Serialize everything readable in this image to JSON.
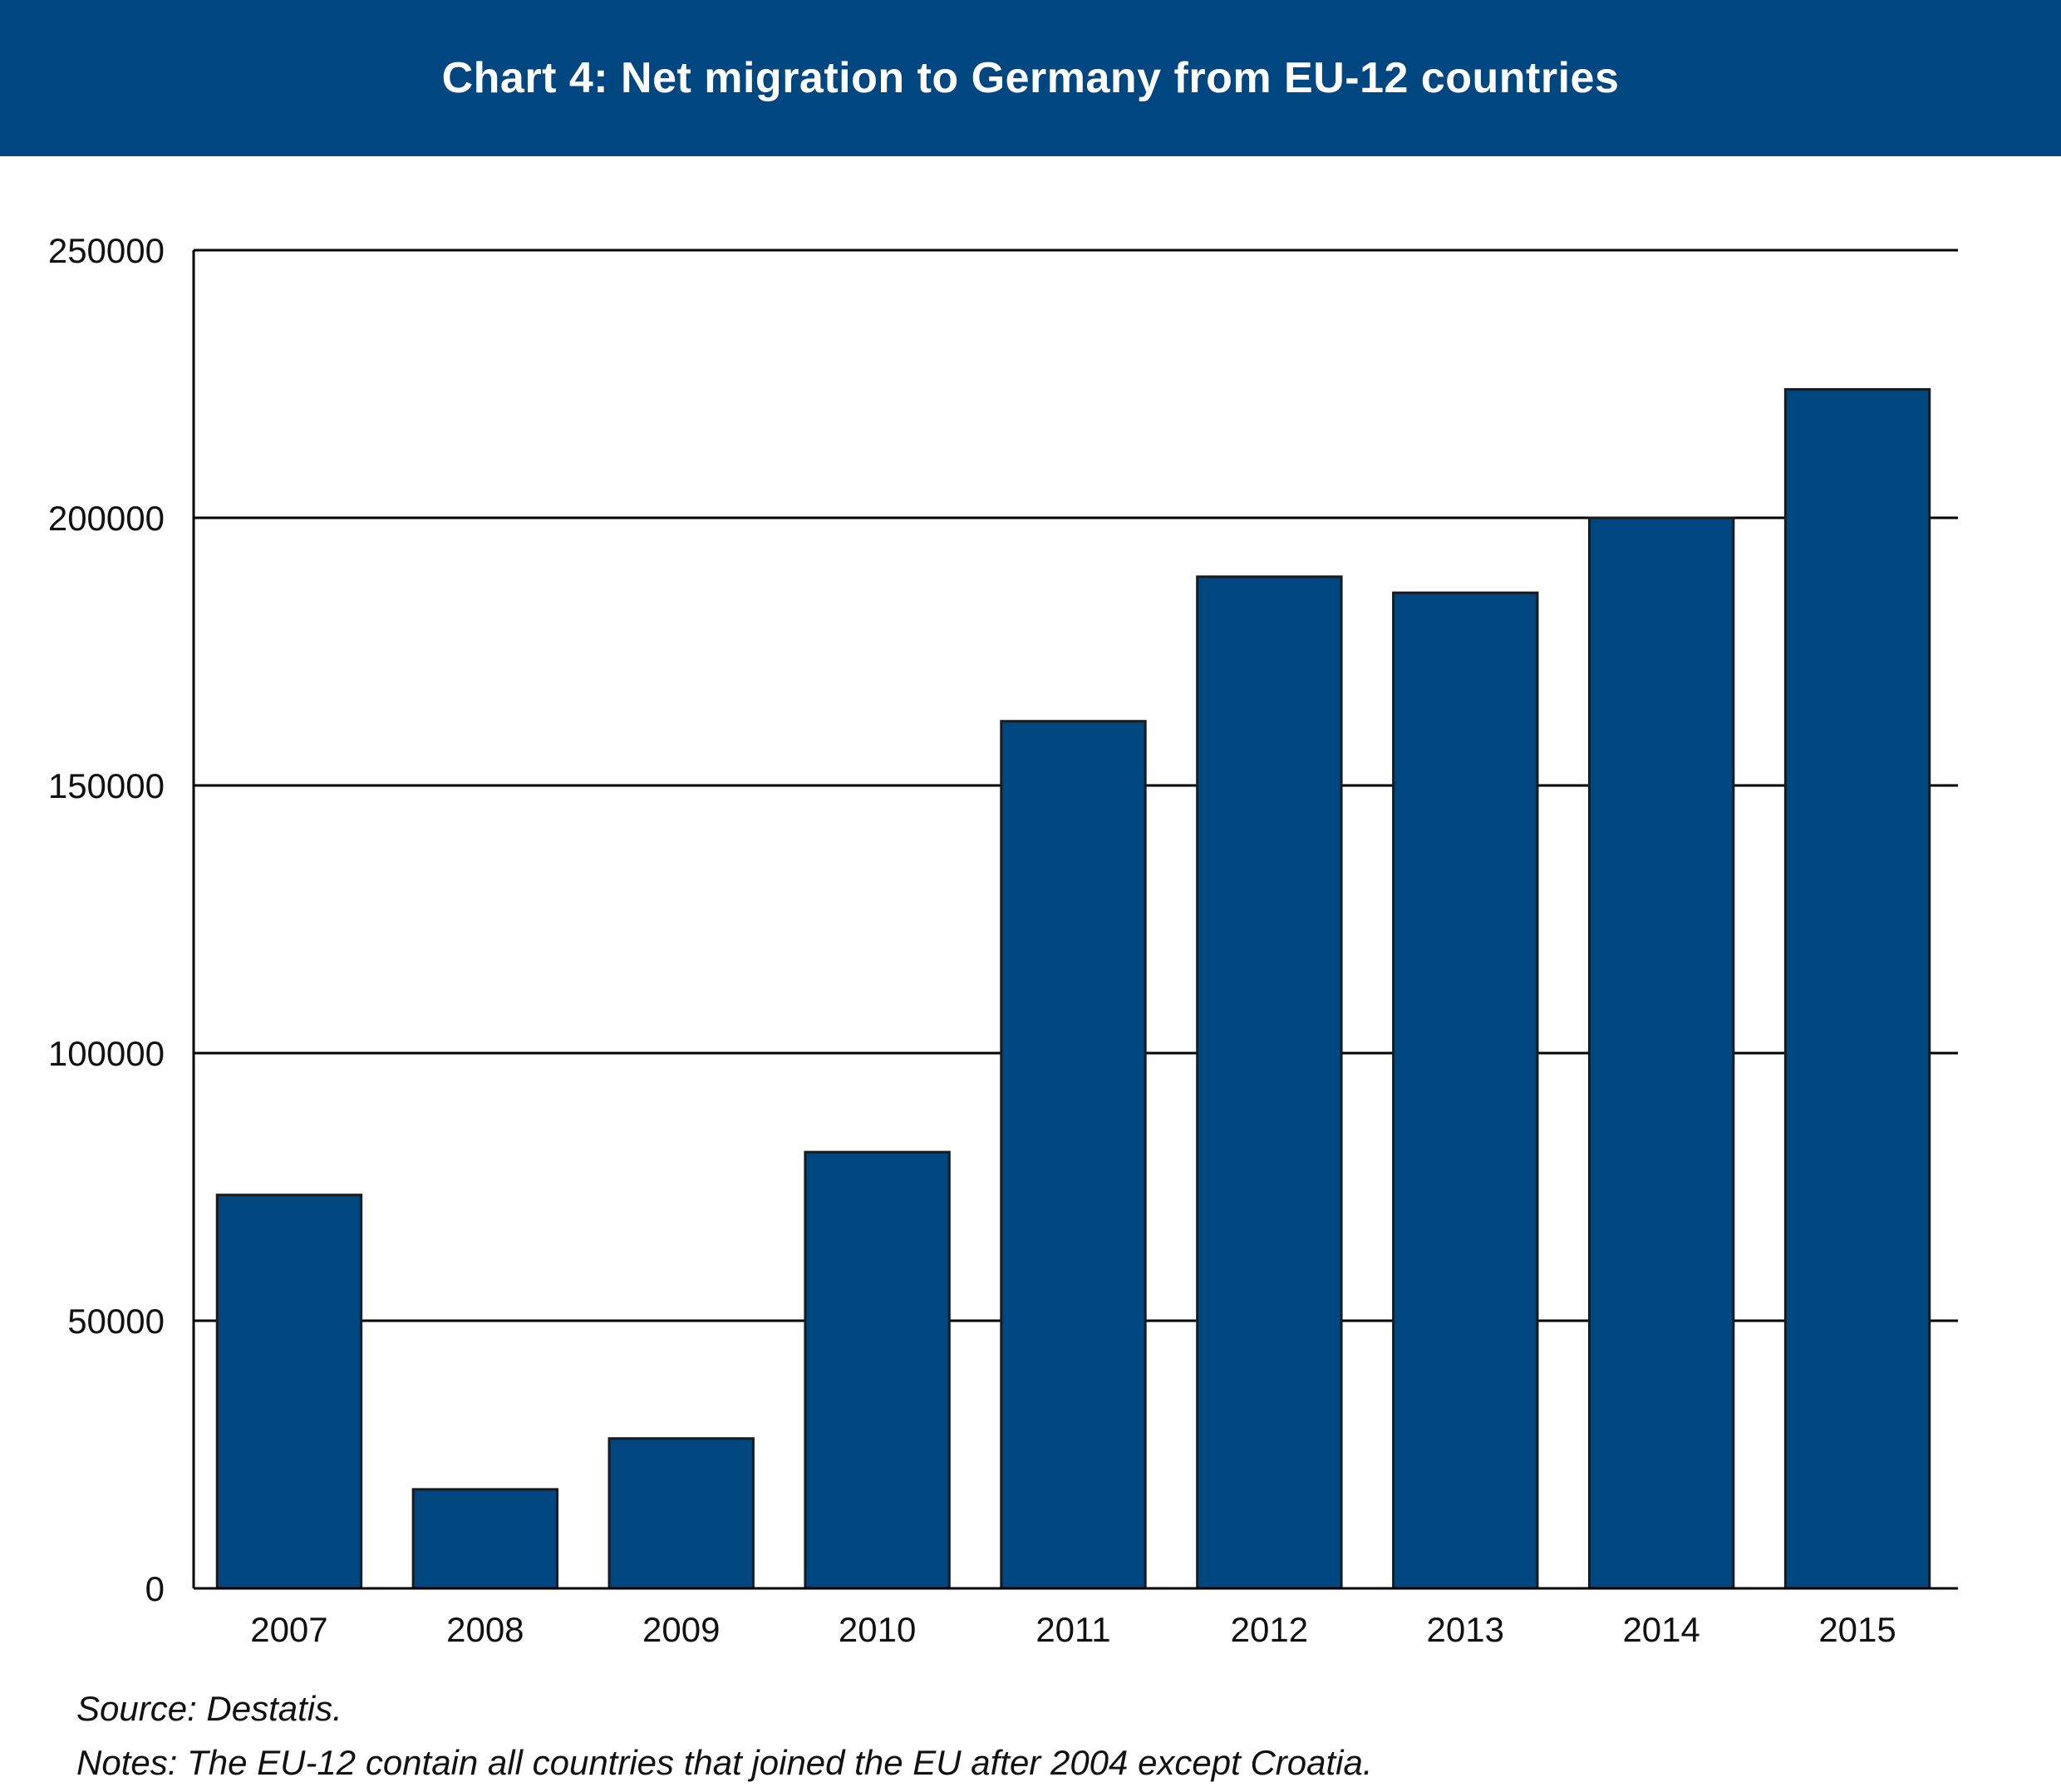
{
  "colors": {
    "banner": "#004680",
    "bar_fill": "#004680",
    "bar_stroke": "#1a1a1a",
    "grid": "#000000"
  },
  "chart_data": {
    "type": "bar",
    "title": "Chart 4: Net migration to Germany from EU-12 countries",
    "xlabel": "",
    "ylabel": "",
    "categories": [
      "2007",
      "2008",
      "2009",
      "2010",
      "2011",
      "2012",
      "2013",
      "2014",
      "2015"
    ],
    "values": [
      73500,
      18500,
      28000,
      81500,
      162000,
      189000,
      186000,
      200000,
      224000
    ],
    "ylim": [
      0,
      250000
    ],
    "yticks": [
      "0",
      "50000",
      "100000",
      "150000",
      "200000",
      "250000"
    ],
    "grid": true,
    "legend": "none"
  },
  "footer": {
    "source": "Source: Destatis.",
    "notes": "Notes: The EU-12 contain all countries that joined the EU after 2004 except Croatia."
  }
}
